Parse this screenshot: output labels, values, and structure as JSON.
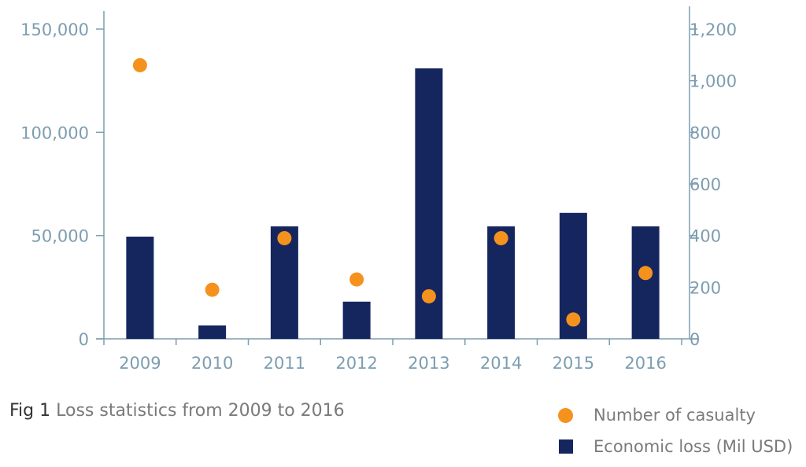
{
  "chart_data": {
    "type": "bar",
    "categories": [
      "2009",
      "2010",
      "2011",
      "2012",
      "2013",
      "2014",
      "2015",
      "2016"
    ],
    "series": [
      {
        "name": "Economic loss (Mil USD)",
        "kind": "bar",
        "axis": "left",
        "color": "#15265f",
        "values": [
          49500,
          6500,
          54500,
          18000,
          131000,
          54500,
          61000,
          54500
        ]
      },
      {
        "name": "Number of casualty",
        "kind": "scatter",
        "axis": "right",
        "color": "#f5921e",
        "values": [
          1060,
          190,
          390,
          230,
          165,
          390,
          75,
          255
        ]
      }
    ],
    "y_left": {
      "ticks": [
        0,
        50000,
        100000,
        150000
      ],
      "tick_labels": [
        "0",
        "50,000",
        "100,000",
        "150,000"
      ],
      "ylim": [
        0,
        150000
      ]
    },
    "y_right": {
      "ticks": [
        0,
        200,
        400,
        600,
        800,
        1000,
        1200
      ],
      "tick_labels": [
        "0",
        "200",
        "400",
        "600",
        "800",
        "1,000",
        "1,200"
      ],
      "ylim": [
        0,
        1200
      ]
    },
    "grid": false,
    "legend_position": "bottom-right"
  },
  "caption": {
    "fig": "Fig 1",
    "text": " Loss statistics from 2009 to 2016"
  },
  "legend": {
    "items": [
      {
        "label": "Number of casualty",
        "color": "#f5921e",
        "shape": "circle"
      },
      {
        "label": "Economic loss (Mil USD)",
        "color": "#15265f",
        "shape": "square"
      }
    ]
  },
  "colors": {
    "axis": "#7d9db0",
    "tick_text": "#7d9db0"
  }
}
